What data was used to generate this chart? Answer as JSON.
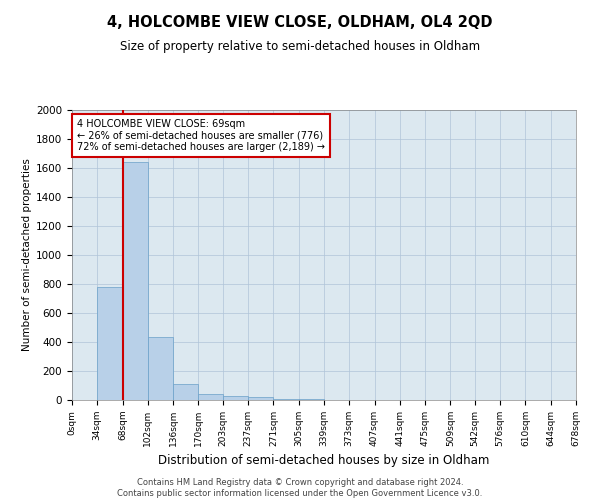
{
  "title": "4, HOLCOMBE VIEW CLOSE, OLDHAM, OL4 2QD",
  "subtitle": "Size of property relative to semi-detached houses in Oldham",
  "xlabel": "Distribution of semi-detached houses by size in Oldham",
  "ylabel": "Number of semi-detached properties",
  "footer_line1": "Contains HM Land Registry data © Crown copyright and database right 2024.",
  "footer_line2": "Contains public sector information licensed under the Open Government Licence v3.0.",
  "annotation_line1": "4 HOLCOMBE VIEW CLOSE: 69sqm",
  "annotation_line2": "← 26% of semi-detached houses are smaller (776)",
  "annotation_line3": "72% of semi-detached houses are larger (2,189) →",
  "property_size": 69,
  "bar_color": "#b8d0e8",
  "bar_edge_color": "#6aa0c8",
  "highlight_line_color": "#cc0000",
  "annotation_box_edge_color": "#cc0000",
  "background_color": "#ffffff",
  "plot_bg_color": "#dce8f0",
  "grid_color": "#b0c4d8",
  "ylim": [
    0,
    2000
  ],
  "bin_edges": [
    0,
    34,
    68,
    102,
    136,
    170,
    203,
    237,
    271,
    305,
    339,
    373,
    407,
    441,
    475,
    509,
    542,
    576,
    610,
    644,
    678
  ],
  "bin_labels": [
    "0sqm",
    "34sqm",
    "68sqm",
    "102sqm",
    "136sqm",
    "170sqm",
    "203sqm",
    "237sqm",
    "271sqm",
    "305sqm",
    "339sqm",
    "373sqm",
    "407sqm",
    "441sqm",
    "475sqm",
    "509sqm",
    "542sqm",
    "576sqm",
    "610sqm",
    "644sqm",
    "678sqm"
  ],
  "counts": [
    0,
    776,
    1638,
    437,
    109,
    40,
    27,
    20,
    10,
    5,
    3,
    1,
    1,
    1,
    0,
    0,
    0,
    0,
    0,
    0
  ]
}
